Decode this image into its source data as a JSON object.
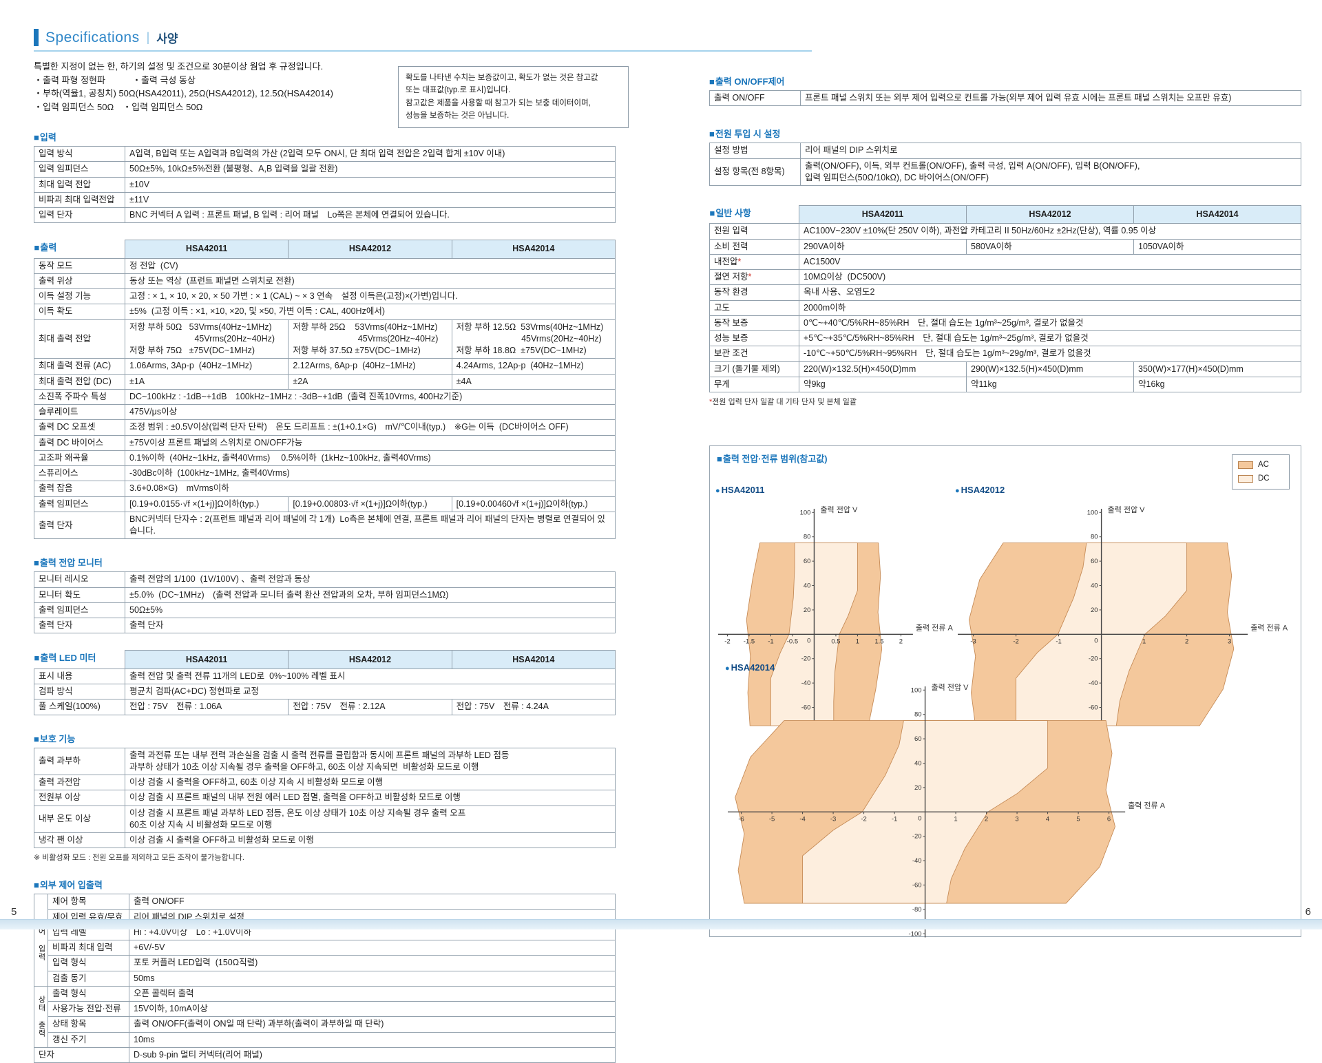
{
  "header": {
    "title_en": "Specifications",
    "title_ko": "사양"
  },
  "page": {
    "left_number": "5",
    "right_number": "6"
  },
  "models": [
    "HSA42011",
    "HSA42012",
    "HSA42014"
  ],
  "colors": {
    "accent_blue": "#1b76bb",
    "table_header_bg": "#d9ecf8",
    "ac_fill": "#f4c89c",
    "dc_fill": "#fdeede",
    "region_stroke": "#c68c58"
  },
  "intro": {
    "lines": [
      "특별한 지정이 없는 한, 하기의 설정 및 조건으로 30분이상 웜업 후 규정입니다.",
      "・출력 파형 정현파　　　・출력 극성 동상",
      "・부하(역율1, 공칭치) 50Ω(HSA42011),  25Ω(HSA42012), 12.5Ω(HSA42014)",
      "・입력 임피던스 50Ω　・입력 임피던스 50Ω"
    ]
  },
  "note_box": {
    "lines": [
      "확도를 나타낸 수치는 보증값이고, 확도가 없는 것은 참고값",
      "또는 대표값(typ.로 표시)입니다.",
      "참고값은 제품을 사용할 때 참고가 되는 보충 데이터이며,",
      "성능을 보증하는 것은 아닙니다."
    ]
  },
  "input_table": {
    "title": "입력",
    "rows": [
      {
        "label": "입력 방식",
        "value": "A입력, B입력 또는 A입력과 B입력의 가산 (2입력 모두 ON시, 단 최대 입력 전압은 2입력 합계 ±10V 이내)"
      },
      {
        "label": "입력 임피던스",
        "value": "50Ω±5%, 10kΩ±5%전환 (불평형、A,B 입력을 일괄 전환)"
      },
      {
        "label": "최대 입력 전압",
        "value": "±10V"
      },
      {
        "label": "비파괴 최대 입력전압",
        "value": "±11V"
      },
      {
        "label": "입력 단자",
        "value": "BNC 커넥터 A 입력 : 프론트 패널, B 입력 : 리어 패널　Lo쪽은 본체에 연결되어 있습니다."
      }
    ]
  },
  "output_table": {
    "title": "출력",
    "rows": [
      {
        "label": "동작 모드",
        "span": "정 전압  (CV)"
      },
      {
        "label": "출력 위상",
        "span": "동상 또는 역상  (프런트 패널면 스위치로 전환)"
      },
      {
        "label": "이득 설정 기능",
        "span": "고정 : × 1, × 10, × 20, × 50 가변 : × 1 (CAL) ~ × 3 연속　설정 이득은(고정)×(가변)입니다."
      },
      {
        "label": "이득 확도",
        "span": "±5%  (고정 이득 : ×1, ×10, ×20, 및 ×50, 가변 이득 : CAL, 400Hz에서)"
      },
      {
        "label": "최대 출력 전압",
        "cells": [
          [
            "저항 부하 50Ω   53Vrms(40Hz~1MHz)",
            "　　　　　　　  45Vrms(20Hz~40Hz)",
            "저항 부하 75Ω   ±75V(DC~1MHz)"
          ],
          [
            "저항 부하 25Ω    53Vrms(40Hz~1MHz)",
            "　　　　　　　  45Vrms(20Hz~40Hz)",
            "저항 부하 37.5Ω ±75V(DC~1MHz)"
          ],
          [
            "저항 부하 12.5Ω  53Vrms(40Hz~1MHz)",
            "　　　　　　　  45Vrms(20Hz~40Hz)",
            "저항 부하 18.8Ω  ±75V(DC~1MHz)"
          ]
        ]
      },
      {
        "label": "최대 출력 전류  (AC)",
        "cells": [
          "1.06Arms, 3Ap-p  (40Hz~1MHz)",
          "2.12Arms, 6Ap-p  (40Hz~1MHz)",
          "4.24Arms, 12Ap-p  (40Hz~1MHz)"
        ]
      },
      {
        "label": "최대 출력 전압  (DC)",
        "cells": [
          "±1A",
          "±2A",
          "±4A"
        ]
      },
      {
        "label": "소진폭 주파수 특성",
        "span": "DC~100kHz : -1dB~+1dB　100kHz~1MHz : -3dB~+1dB  (출력 진폭10Vrms, 400Hz기준)"
      },
      {
        "label": "슬루레이트",
        "span": "475V/μs이상"
      },
      {
        "label": "출력 DC 오프셋",
        "span": "조정 범위 : ±0.5V이상(입력 단자 단락)　온도 드리프트 : ±(1+0.1×G)　mV/℃이내(typ.)　※G는 이득  (DC바이어스 OFF)"
      },
      {
        "label": "출력 DC 바이어스",
        "span": "±75V이상 프론트 패널의 스위치로 ON/OFF가능"
      },
      {
        "label": "고조파 왜곡율",
        "span": "0.1%이하  (40Hz~1kHz, 출력40Vrms)　 0.5%이하  (1kHz~100kHz, 출력40Vrms)"
      },
      {
        "label": "스퓨리어스",
        "span": "-30dBc이하  (100kHz~1MHz, 출력40Vrms)"
      },
      {
        "label": "출력 잡음",
        "span": "3.6+0.08×G)　mVrms이하"
      },
      {
        "label": "출력 임피던스",
        "cells": [
          "[0.19+0.0155·√f ×(1+j)]Ω이하(typ.)",
          "[0.19+0.00803·√f ×(1+j)]Ω이하(typ.)",
          "[0.19+0.00460√f ×(1+j)]Ω이하(typ.)"
        ]
      },
      {
        "label": "출력 단자",
        "span": "BNC커넥터 단자수 : 2(프런트 패널과 리어 패널에 각 1개)  Lo측은 본체에 연결, 프론트 패널과 리어 패널의 단자는 병렬로 연결되어 있습니다."
      }
    ]
  },
  "monitor_table": {
    "title": "출력 전압 모니터",
    "rows": [
      {
        "label": "모니터 레시오",
        "value": "출력 전압의 1/100  (1V/100V) 、출력 전압과 동상"
      },
      {
        "label": "모니터 확도",
        "value": "±5.0%  (DC~1MHz)　(출력 전압과 모니터 출력 환산 전압과의 오차, 부하 임피던스1MΩ)"
      },
      {
        "label": "출력 임피던스",
        "value": "50Ω±5%"
      },
      {
        "label": "출력 단자",
        "value": "출력 단자"
      }
    ]
  },
  "led_table": {
    "title": "출력 LED 미터",
    "rows": [
      {
        "label": "표시 내용",
        "span": "출력 전압 및 출력 전류 11개의 LED로  0%~100% 레벨 표시"
      },
      {
        "label": "검파 방식",
        "span": "평균치 검파(AC+DC) 정현파로 교정"
      },
      {
        "label": "풀 스케일(100%)",
        "cells": [
          "전압 : 75V　전류 : 1.06A",
          "전압 : 75V　전류 : 2.12A",
          "전압 : 75V　전류 : 4.24A"
        ]
      }
    ]
  },
  "protection_table": {
    "title": "보호 기능",
    "rows": [
      {
        "label": "출력 과부하",
        "value": [
          "출력 과전류 또는 내부 전력 과손실을 검출 시 출력 전류를 클립함과 동시에 프론트 패널의 과부하 LED 점등",
          "과부하 상태가 10초 이상 지속될 경우 출력을 OFF하고, 60초 이상 지속되면  비활성화 모드로 이행"
        ]
      },
      {
        "label": "출력 과전압",
        "value": "이상 검출 시 출력을 OFF하고, 60초 이상 지속 시 비활성화 모드로 이행"
      },
      {
        "label": "전원부 이상",
        "value": "이상 검출 시 프론트 패널의 내부 전원 에러 LED 점멸, 출력을 OFF하고 비활성화 모드로 이행"
      },
      {
        "label": "내부 온도 이상",
        "value": [
          "이상 검출 시 프론트 패널 과부하 LED 점등, 온도 이상 상태가 10초 이상 지속될 경우 출력 오프",
          "60초 이상 지속 시 비활성화 모드로 이행"
        ]
      },
      {
        "label": "냉각 팬 이상",
        "value": "이상 검출 시 출력을 OFF하고 비활성화 모드로 이행"
      }
    ],
    "note": "※ 비활성화 모드 : 전원 오프를 제외하고 모든 조작이 불가능합니다."
  },
  "external_table": {
    "title": "외부 제어 입출력",
    "groups": [
      {
        "group": "제어 입력",
        "rows": [
          {
            "label": "제어 항목",
            "value": "출력 ON/OFF"
          },
          {
            "label": "제어 입력 유효/무효",
            "value": "리어 패널의 DIP 스위치로 설정"
          },
          {
            "label": "입력 레벨",
            "value": "Hi : +4.0V이상　Lo : +1.0V이하"
          },
          {
            "label": "비파괴 최대 입력",
            "value": "+6V/-5V"
          },
          {
            "label": "입력 형식",
            "value": "포토 커플러 LED입력  (150Ω직렬)"
          },
          {
            "label": "검출 동기",
            "value": "50ms"
          }
        ]
      },
      {
        "group": "상태 출력",
        "rows": [
          {
            "label": "출력 형식",
            "value": "오픈 콜렉터 출력"
          },
          {
            "label": "사용가능 전압·전류",
            "value": "15V이하, 10mA이상"
          },
          {
            "label": "상태 항목",
            "value": "출력 ON/OFF(출력이 ON일 때 단락) 과부하(출력이 과부하일 때 단락)"
          },
          {
            "label": "갱신 주기",
            "value": "10ms"
          }
        ]
      }
    ],
    "tail_rows": [
      {
        "label": "단자",
        "value": "D-sub 9-pin 멀티 커넥터(리어 패널)"
      }
    ]
  },
  "onoff_table": {
    "title": "출력 ON/OFF제어",
    "rows": [
      {
        "label": "출력 ON/OFF",
        "value": "프론트 패널 스위치 또는 외부 제어 입력으로 컨트롤 가능(외부 제어 입력 유효 시에는 프론트 패널 스위치는 오프만 유효)"
      }
    ]
  },
  "poweron_table": {
    "title": "전원 투입 시 설정",
    "rows": [
      {
        "label": "설정 방법",
        "value": "리어 패널의 DIP 스위치로"
      },
      {
        "label": "설정 항목(전 8항목)",
        "value": [
          "출력(ON/OFF), 이득, 외부 컨트롤(ON/OFF), 출력 극성, 입력 A(ON/OFF), 입력 B(ON/OFF),",
          "입력 임피던스(50Ω/10kΩ), DC 바이어스(ON/OFF)"
        ]
      }
    ]
  },
  "general_table": {
    "title": "일반 사항",
    "rows": [
      {
        "label": "전원 입력",
        "span": "AC100V~230V ±10%(단 250V 이하), 과전압 카테고리 II 50Hz/60Hz ±2Hz(단상), 역률 0.95 이상"
      },
      {
        "label": "소비 전력",
        "cells": [
          "290VA이하",
          "580VA이하",
          "1050VA이하"
        ]
      },
      {
        "label": "내전압",
        "star": true,
        "span": "AC1500V"
      },
      {
        "label": "절연 저항",
        "star": true,
        "span": "10MΩ이상  (DC500V)"
      },
      {
        "label": "동작 환경",
        "span": "옥내 사용、오염도2"
      },
      {
        "label": "고도",
        "span": "2000m이하"
      },
      {
        "label": "동작 보증",
        "span": "0℃~+40℃/5%RH~85%RH　단, 절대 습도는 1g/m³~25g/m³, 결로가 없을것"
      },
      {
        "label": "성능 보증",
        "span": "+5℃~+35℃/5%RH~85%RH　단, 절대 습도는 1g/m³~25g/m³, 결로가 없을것"
      },
      {
        "label": "보관 조건",
        "span": "-10℃~+50℃/5%RH~95%RH　단, 절대 습도는 1g/m³~29g/m³, 결로가 없을것"
      },
      {
        "label": "크기 (돌기물 제외)",
        "cells": [
          "220(W)×132.5(H)×450(D)mm",
          "290(W)×132.5(H)×450(D)mm",
          "350(W)×177(H)×450(D)mm"
        ]
      },
      {
        "label": "무게",
        "cells": [
          "약9kg",
          "약11kg",
          "약16kg"
        ]
      }
    ],
    "footnote": "전원 입력 단자 일괄 대 기타 단자 및 본체 일괄"
  },
  "chart_data": {
    "type": "area",
    "title": "출력 전압·전류 범위(참고값)",
    "legend": {
      "ac_label": "AC",
      "dc_label": "DC",
      "position": "top-right"
    },
    "xlabel": "출력 전류 A",
    "ylabel": "출력 전압 V",
    "y_ticks": [
      -100,
      -80,
      -60,
      -40,
      -20,
      0,
      20,
      40,
      60,
      80,
      100
    ],
    "ylim": [
      -100,
      100
    ],
    "charts": [
      {
        "model": "HSA42011",
        "x_ticks": [
          -2,
          -1.5,
          -1,
          -0.5,
          0,
          0.5,
          1,
          1.5,
          2
        ],
        "xlim": [
          -2.15,
          2.15
        ],
        "ac_region": [
          [
            -1.25,
            75
          ],
          [
            1.48,
            75
          ],
          [
            1.53,
            48
          ],
          [
            1.47,
            18
          ],
          [
            1.56,
            -12
          ],
          [
            1.42,
            -45
          ],
          [
            1.25,
            -75
          ],
          [
            -1.48,
            -75
          ],
          [
            -1.53,
            -48
          ],
          [
            -1.47,
            -18
          ],
          [
            -1.56,
            12
          ],
          [
            -1.42,
            45
          ]
        ],
        "dc_region": [
          [
            -0.45,
            75
          ],
          [
            1.0,
            75
          ],
          [
            1.0,
            36
          ],
          [
            0.78,
            15
          ],
          [
            0.58,
            0
          ],
          [
            0.48,
            -30
          ],
          [
            0.45,
            -55
          ],
          [
            0.45,
            -75
          ],
          [
            -1.0,
            -75
          ],
          [
            -1.0,
            -36
          ],
          [
            -0.78,
            -15
          ],
          [
            -0.58,
            0
          ],
          [
            -0.48,
            30
          ],
          [
            -0.45,
            55
          ]
        ]
      },
      {
        "model": "HSA42012",
        "x_ticks": [
          -3,
          -2,
          -1,
          0,
          1,
          2,
          3
        ],
        "xlim": [
          -3.3,
          3.3
        ],
        "ac_region": [
          [
            -2.3,
            75
          ],
          [
            2.95,
            75
          ],
          [
            3.05,
            48
          ],
          [
            2.95,
            18
          ],
          [
            3.1,
            -12
          ],
          [
            2.85,
            -45
          ],
          [
            2.3,
            -75
          ],
          [
            -2.95,
            -75
          ],
          [
            -3.05,
            -48
          ],
          [
            -2.95,
            -18
          ],
          [
            -3.1,
            12
          ],
          [
            -2.85,
            45
          ]
        ],
        "dc_region": [
          [
            -0.35,
            75
          ],
          [
            2.0,
            75
          ],
          [
            2.0,
            36
          ],
          [
            1.5,
            15
          ],
          [
            1.02,
            0
          ],
          [
            0.65,
            -30
          ],
          [
            0.43,
            -55
          ],
          [
            0.35,
            -75
          ],
          [
            -2.0,
            -75
          ],
          [
            -2.0,
            -36
          ],
          [
            -1.5,
            -15
          ],
          [
            -1.02,
            0
          ],
          [
            -0.65,
            30
          ],
          [
            -0.43,
            55
          ]
        ]
      },
      {
        "model": "HSA42014",
        "x_ticks": [
          -6,
          -5,
          -4,
          -3,
          -2,
          -1,
          0,
          1,
          2,
          3,
          4,
          5,
          6
        ],
        "xlim": [
          -6.35,
          6.35
        ],
        "ac_region": [
          [
            -4.6,
            75
          ],
          [
            5.9,
            75
          ],
          [
            6.1,
            48
          ],
          [
            5.9,
            18
          ],
          [
            6.2,
            -12
          ],
          [
            5.7,
            -45
          ],
          [
            4.6,
            -75
          ],
          [
            -5.9,
            -75
          ],
          [
            -6.1,
            -48
          ],
          [
            -5.9,
            -18
          ],
          [
            -6.2,
            12
          ],
          [
            -5.7,
            45
          ]
        ],
        "dc_region": [
          [
            -0.7,
            75
          ],
          [
            4.0,
            75
          ],
          [
            4.0,
            36
          ],
          [
            3.0,
            15
          ],
          [
            2.05,
            0
          ],
          [
            1.3,
            -30
          ],
          [
            0.85,
            -55
          ],
          [
            0.7,
            -75
          ],
          [
            -4.0,
            -75
          ],
          [
            -4.0,
            -36
          ],
          [
            -3.0,
            -15
          ],
          [
            -2.05,
            0
          ],
          [
            -1.3,
            30
          ],
          [
            -0.85,
            55
          ]
        ]
      }
    ]
  }
}
